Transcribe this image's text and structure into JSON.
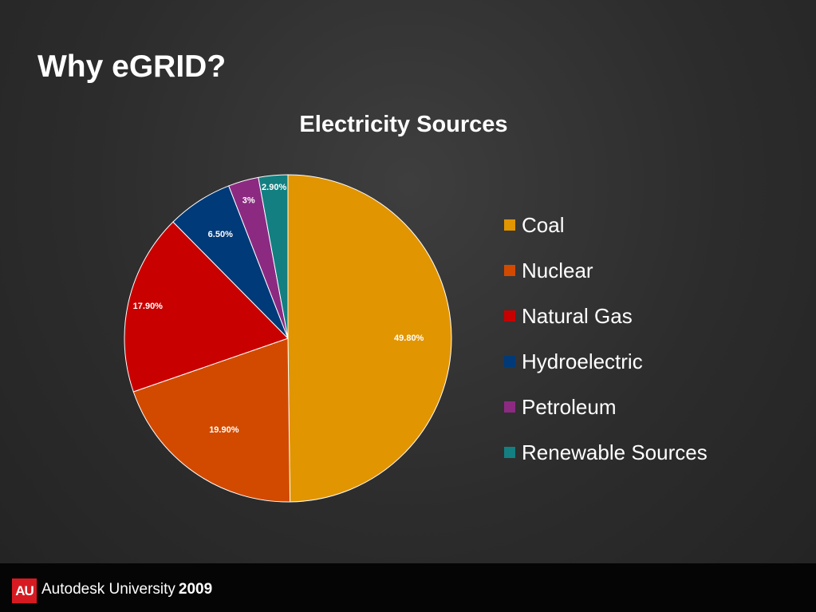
{
  "slide": {
    "title": "Why eGRID?"
  },
  "footer": {
    "logo_text": "AU",
    "brand": "Autodesk University",
    "year": "2009"
  },
  "chart_data": {
    "type": "pie",
    "title": "Electricity Sources",
    "legend_position": "right",
    "slices": [
      {
        "label": "Coal",
        "value": 49.8,
        "display": "49.80%",
        "color": "#e19500"
      },
      {
        "label": "Nuclear",
        "value": 19.9,
        "display": "19.90%",
        "color": "#d24a00"
      },
      {
        "label": "Natural Gas",
        "value": 17.9,
        "display": "17.90%",
        "color": "#c80000"
      },
      {
        "label": "Hydroelectric",
        "value": 6.5,
        "display": "6.50%",
        "color": "#003a78"
      },
      {
        "label": "Petroleum",
        "value": 3,
        "display": "3%",
        "color": "#8c2a82"
      },
      {
        "label": "Renewable Sources",
        "value": 2.9,
        "display": "2.90%",
        "color": "#137f80"
      }
    ]
  }
}
